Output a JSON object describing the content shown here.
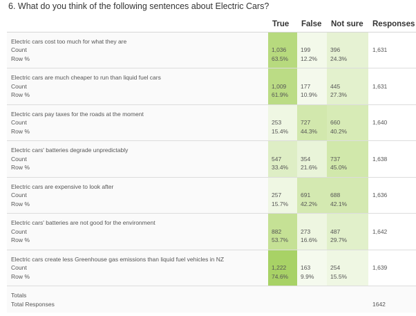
{
  "question": {
    "title": "6. What do you think of the following sentences about Electric Cars?"
  },
  "table": {
    "columns": [
      "True",
      "False",
      "Not sure",
      "Responses"
    ],
    "sub_labels": {
      "count": "Count",
      "row_pct": "Row %"
    },
    "rows": [
      {
        "label": "Electric cars cost too much for what they are",
        "cells": [
          {
            "count": "1,036",
            "pct": "63.5%",
            "bg": "#b7da7e"
          },
          {
            "count": "199",
            "pct": "12.2%",
            "bg": "#f3f9ea"
          },
          {
            "count": "396",
            "pct": "24.3%",
            "bg": "#e6f2d3"
          }
        ],
        "responses": "1,631"
      },
      {
        "label": "Electric cars are much cheaper to run than liquid fuel cars",
        "cells": [
          {
            "count": "1,009",
            "pct": "61.9%",
            "bg": "#bbdc85"
          },
          {
            "count": "177",
            "pct": "10.9%",
            "bg": "#f4f9ec"
          },
          {
            "count": "445",
            "pct": "27.3%",
            "bg": "#e3f1cd"
          }
        ],
        "responses": "1,631"
      },
      {
        "label": "Electric cars pay taxes for the roads at the moment",
        "cells": [
          {
            "count": "253",
            "pct": "15.4%",
            "bg": "#eff7e3"
          },
          {
            "count": "727",
            "pct": "44.3%",
            "bg": "#d2e8ad"
          },
          {
            "count": "660",
            "pct": "40.2%",
            "bg": "#d7ebb6"
          }
        ],
        "responses": "1,640"
      },
      {
        "label": "Electric cars' batteries degrade unpredictably",
        "cells": [
          {
            "count": "547",
            "pct": "33.4%",
            "bg": "#deeec5"
          },
          {
            "count": "354",
            "pct": "21.6%",
            "bg": "#e9f4d9"
          },
          {
            "count": "737",
            "pct": "45.0%",
            "bg": "#d1e8ab"
          }
        ],
        "responses": "1,638"
      },
      {
        "label": "Electric cars are expensive to look after",
        "cells": [
          {
            "count": "257",
            "pct": "15.7%",
            "bg": "#eff7e3"
          },
          {
            "count": "691",
            "pct": "42.2%",
            "bg": "#d4e9b1"
          },
          {
            "count": "688",
            "pct": "42.1%",
            "bg": "#d4e9b1"
          }
        ],
        "responses": "1,636"
      },
      {
        "label": "Electric cars' batteries are not good for the environment",
        "cells": [
          {
            "count": "882",
            "pct": "53.7%",
            "bg": "#c5e195"
          },
          {
            "count": "273",
            "pct": "16.6%",
            "bg": "#eef6e1"
          },
          {
            "count": "487",
            "pct": "29.7%",
            "bg": "#e1f0ca"
          }
        ],
        "responses": "1,642"
      },
      {
        "label": "Electric cars create less Greenhouse gas emissions than liquid fuel vehicles in NZ",
        "cells": [
          {
            "count": "1,222",
            "pct": "74.6%",
            "bg": "#a8d266"
          },
          {
            "count": "163",
            "pct": "9.9%",
            "bg": "#f5faee"
          },
          {
            "count": "254",
            "pct": "15.5%",
            "bg": "#eff7e3"
          }
        ],
        "responses": "1,639"
      }
    ],
    "footer": {
      "totals_label": "Totals",
      "total_responses_label": "Total Responses",
      "total_responses": "1642"
    }
  }
}
